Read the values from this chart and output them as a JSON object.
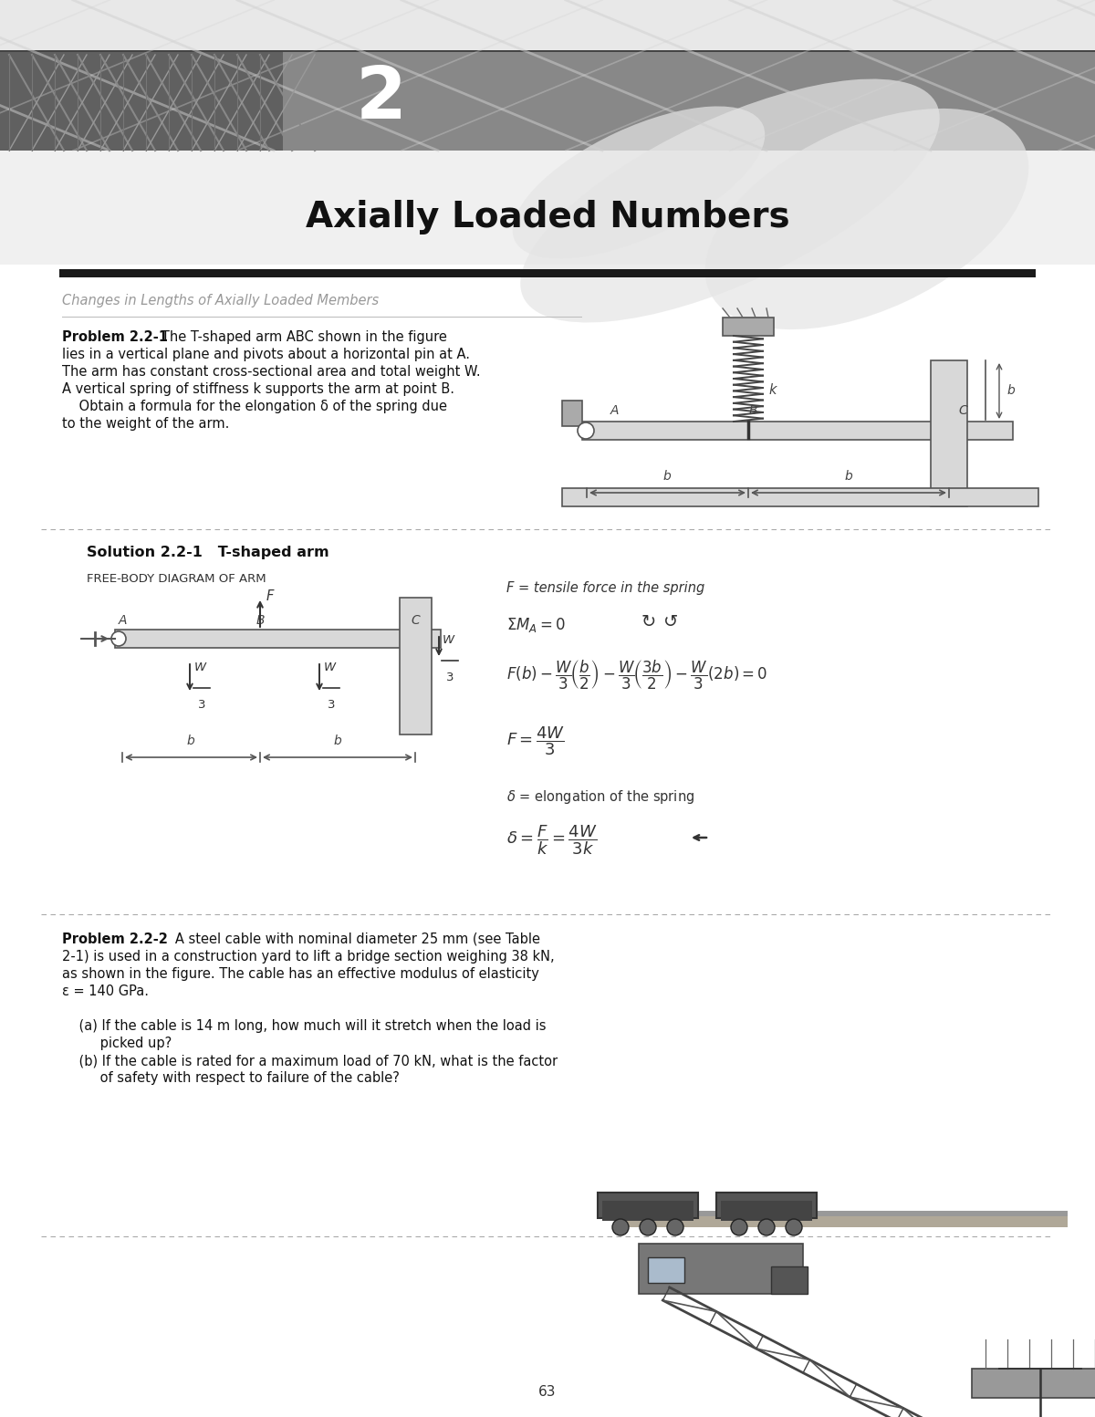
{
  "page_bg": "#ffffff",
  "header_stripe_color": "#888888",
  "header_left_bg": "#666666",
  "header_num": "2",
  "header_num_color": "#ffffff",
  "title_text": "Axially Loaded Numbers",
  "title_fontsize": 28,
  "section_bar_color": "#1a1a1a",
  "section_title": "Changes in Lengths of Axially Loaded Members",
  "section_title_color": "#999999",
  "prob1_bold": "Problem 2.2-1",
  "prob1_line1": "   The T-shaped arm ABC shown in the figure",
  "prob1_line2": "lies in a vertical plane and pivots about a horizontal pin at A.",
  "prob1_line3": "The arm has constant cross-sectional area and total weight W.",
  "prob1_line4": "A vertical spring of stiffness k supports the arm at point B.",
  "prob1_line5": "    Obtain a formula for the elongation δ of the spring due",
  "prob1_line6": "to the weight of the arm.",
  "sol_title": "Solution 2.2-1   T-shaped arm",
  "fbd_label": "FREE-BODY DIAGRAM OF ARM",
  "f_label": "F = tensile force in the spring",
  "prob2_bold": "Problem 2.2-2",
  "prob2_line1": "   A steel cable with nominal diameter 25 mm (see Table",
  "prob2_line2": "2-1) is used in a construction yard to lift a bridge section weighing 38 kN,",
  "prob2_line3": "as shown in the figure. The cable has an effective modulus of elasticity",
  "prob2_line4": "ε = 140 GPa.",
  "prob2_line5a": "    (a) If the cable is 14 m long, how much will it stretch when the load is",
  "prob2_line5b": "         picked up?",
  "prob2_line6a": "    (b) If the cable is rated for a maximum load of 70 kN, what is the factor",
  "prob2_line6b": "         of safety with respect to failure of the cable?",
  "page_number": "63",
  "text_color": "#111111",
  "diagram_color": "#333333",
  "arm_fill": "#d8d8d8",
  "arm_edge": "#555555"
}
